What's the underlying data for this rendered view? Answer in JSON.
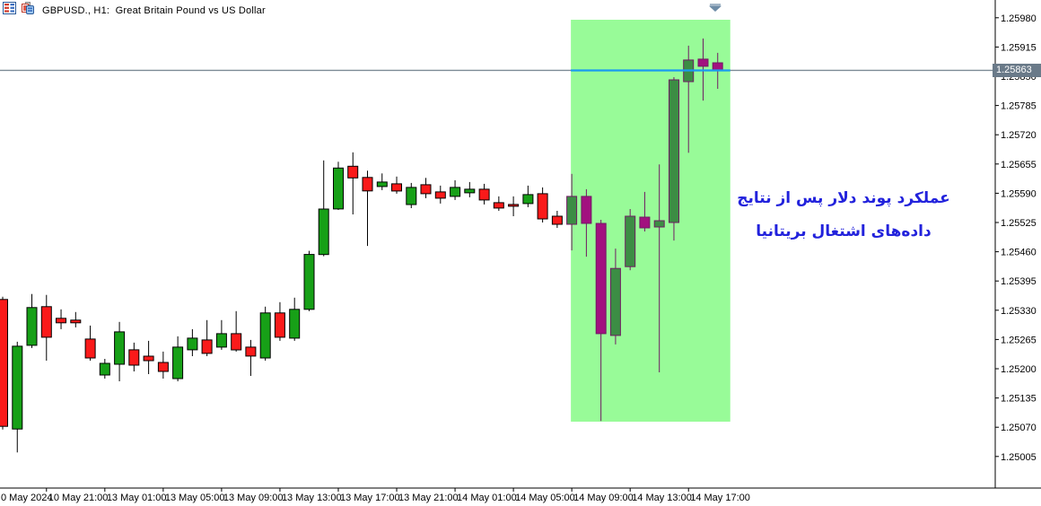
{
  "window": {
    "title": "GBPUSD., H1:  Great Britain Pound vs US Dollar",
    "icons": [
      "market-watch-icon",
      "chart-profile-icon"
    ],
    "scroll_arrow_hint": "scroll-to-latest"
  },
  "annotation": {
    "line1": "عملکرد پوند دلار پس از نتایج",
    "line2": "داده‌های اشتغال بریتانیا",
    "color": "#2222DC"
  },
  "price_scale": {
    "labels": [
      "1.25980",
      "1.25915",
      "1.25850",
      "1.25785",
      "1.25720",
      "1.25655",
      "1.25590",
      "1.25525",
      "1.25460",
      "1.25395",
      "1.25330",
      "1.25265",
      "1.25200",
      "1.25135",
      "1.25070",
      "1.25005"
    ],
    "current_price": "1.25863"
  },
  "time_scale": {
    "ticks": [
      {
        "label": "0 May 2024",
        "candle_index": -1
      },
      {
        "label": "10 May 21:00",
        "candle_index": 3
      },
      {
        "label": "13 May 01:00",
        "candle_index": 7
      },
      {
        "label": "13 May 05:00",
        "candle_index": 11
      },
      {
        "label": "13 May 09:00",
        "candle_index": 15
      },
      {
        "label": "13 May 13:00",
        "candle_index": 19
      },
      {
        "label": "13 May 17:00",
        "candle_index": 23
      },
      {
        "label": "13 May 21:00",
        "candle_index": 27
      },
      {
        "label": "14 May 01:00",
        "candle_index": 31
      },
      {
        "label": "14 May 05:00",
        "candle_index": 35
      },
      {
        "label": "14 May 09:00",
        "candle_index": 39
      },
      {
        "label": "14 May 13:00",
        "candle_index": 43
      },
      {
        "label": "14 May 17:00",
        "candle_index": 47
      }
    ]
  },
  "highlight_zone": {
    "start_index": 39,
    "end_index": 49,
    "top_price": 1.26,
    "bottom_price": 1.2508
  },
  "colors": {
    "bull": "#17A017",
    "bear": "#FA1A1A",
    "candle_border": "#000000",
    "zone_bull": "#3C8D44",
    "zone_bear": "#A2117F",
    "zone_border": "#701B63",
    "zone_fill": "#98FB98",
    "bid_line_gray": "#7D8B96",
    "highlight_line_blue": "#199BF0",
    "badge_bg": "#6A7A89",
    "axis": "#000000"
  },
  "chart_data": {
    "type": "candlestick",
    "symbol": "GBPUSD",
    "timeframe": "H1",
    "title": "GBPUSD., H1:  Great Britain Pound vs US Dollar",
    "current_price": 1.25863,
    "y_axis_label_step": 0.00065,
    "ylim": [
      1.2494,
      1.2602
    ],
    "legend_position": "none",
    "grid": false,
    "candles": [
      {
        "t": "10 May 18:00",
        "o": 1.25354,
        "h": 1.2536,
        "l": 1.25065,
        "c": 1.25072
      },
      {
        "t": "10 May 19:00",
        "o": 1.25066,
        "h": 1.2526,
        "l": 1.25014,
        "c": 1.2525
      },
      {
        "t": "10 May 20:00",
        "o": 1.25252,
        "h": 1.25366,
        "l": 1.25246,
        "c": 1.25336
      },
      {
        "t": "10 May 21:00",
        "o": 1.25338,
        "h": 1.25364,
        "l": 1.25218,
        "c": 1.2527
      },
      {
        "t": "10 May 22:00",
        "o": 1.25312,
        "h": 1.25332,
        "l": 1.25288,
        "c": 1.25302
      },
      {
        "t": "10 May 23:00",
        "o": 1.25308,
        "h": 1.25326,
        "l": 1.25292,
        "c": 1.25302
      },
      {
        "t": "13 May 00:00",
        "o": 1.25266,
        "h": 1.25296,
        "l": 1.25218,
        "c": 1.25224
      },
      {
        "t": "13 May 01:00",
        "o": 1.25186,
        "h": 1.25222,
        "l": 1.25178,
        "c": 1.25212
      },
      {
        "t": "13 May 02:00",
        "o": 1.2521,
        "h": 1.25304,
        "l": 1.25172,
        "c": 1.25282
      },
      {
        "t": "13 May 03:00",
        "o": 1.25242,
        "h": 1.25258,
        "l": 1.25194,
        "c": 1.25208
      },
      {
        "t": "13 May 04:00",
        "o": 1.25228,
        "h": 1.25262,
        "l": 1.25188,
        "c": 1.25218
      },
      {
        "t": "13 May 05:00",
        "o": 1.25214,
        "h": 1.25238,
        "l": 1.25178,
        "c": 1.25194
      },
      {
        "t": "13 May 06:00",
        "o": 1.25178,
        "h": 1.25272,
        "l": 1.25172,
        "c": 1.25248
      },
      {
        "t": "13 May 07:00",
        "o": 1.25242,
        "h": 1.25288,
        "l": 1.25228,
        "c": 1.25268
      },
      {
        "t": "13 May 08:00",
        "o": 1.25264,
        "h": 1.25308,
        "l": 1.25228,
        "c": 1.25234
      },
      {
        "t": "13 May 09:00",
        "o": 1.25248,
        "h": 1.25308,
        "l": 1.25242,
        "c": 1.25278
      },
      {
        "t": "13 May 10:00",
        "o": 1.25278,
        "h": 1.25328,
        "l": 1.25238,
        "c": 1.25242
      },
      {
        "t": "13 May 11:00",
        "o": 1.25248,
        "h": 1.25264,
        "l": 1.25184,
        "c": 1.25228
      },
      {
        "t": "13 May 12:00",
        "o": 1.25224,
        "h": 1.25338,
        "l": 1.25218,
        "c": 1.25324
      },
      {
        "t": "13 May 13:00",
        "o": 1.25324,
        "h": 1.25348,
        "l": 1.25262,
        "c": 1.2527
      },
      {
        "t": "13 May 14:00",
        "o": 1.25268,
        "h": 1.25358,
        "l": 1.25262,
        "c": 1.25332
      },
      {
        "t": "13 May 15:00",
        "o": 1.25332,
        "h": 1.25462,
        "l": 1.25328,
        "c": 1.25454
      },
      {
        "t": "13 May 16:00",
        "o": 1.25454,
        "h": 1.25663,
        "l": 1.2545,
        "c": 1.25555
      },
      {
        "t": "13 May 17:00",
        "o": 1.25555,
        "h": 1.2566,
        "l": 1.25553,
        "c": 1.25646
      },
      {
        "t": "13 May 18:00",
        "o": 1.2565,
        "h": 1.25681,
        "l": 1.25543,
        "c": 1.25624
      },
      {
        "t": "13 May 19:00",
        "o": 1.25625,
        "h": 1.2564,
        "l": 1.25473,
        "c": 1.25595
      },
      {
        "t": "13 May 20:00",
        "o": 1.25605,
        "h": 1.25634,
        "l": 1.25597,
        "c": 1.25615
      },
      {
        "t": "13 May 21:00",
        "o": 1.25611,
        "h": 1.25627,
        "l": 1.25589,
        "c": 1.25595
      },
      {
        "t": "13 May 22:00",
        "o": 1.25565,
        "h": 1.25613,
        "l": 1.25557,
        "c": 1.25603
      },
      {
        "t": "13 May 23:00",
        "o": 1.25609,
        "h": 1.25624,
        "l": 1.25579,
        "c": 1.25589
      },
      {
        "t": "14 May 00:00",
        "o": 1.25593,
        "h": 1.25607,
        "l": 1.25567,
        "c": 1.25579
      },
      {
        "t": "14 May 01:00",
        "o": 1.25583,
        "h": 1.25619,
        "l": 1.25575,
        "c": 1.25603
      },
      {
        "t": "14 May 02:00",
        "o": 1.25591,
        "h": 1.25615,
        "l": 1.25581,
        "c": 1.25599
      },
      {
        "t": "14 May 03:00",
        "o": 1.25599,
        "h": 1.25611,
        "l": 1.25565,
        "c": 1.25575
      },
      {
        "t": "14 May 04:00",
        "o": 1.25569,
        "h": 1.25583,
        "l": 1.25551,
        "c": 1.25557
      },
      {
        "t": "14 May 05:00",
        "o": 1.25565,
        "h": 1.25583,
        "l": 1.25539,
        "c": 1.25561
      },
      {
        "t": "14 May 06:00",
        "o": 1.25567,
        "h": 1.25607,
        "l": 1.25559,
        "c": 1.25587
      },
      {
        "t": "14 May 07:00",
        "o": 1.25589,
        "h": 1.25603,
        "l": 1.25525,
        "c": 1.25533
      },
      {
        "t": "14 May 08:00",
        "o": 1.25539,
        "h": 1.25551,
        "l": 1.25513,
        "c": 1.25521
      },
      {
        "t": "14 May 09:00",
        "o": 1.25521,
        "h": 1.25633,
        "l": 1.25463,
        "c": 1.25583
      },
      {
        "t": "14 May 10:00",
        "o": 1.25583,
        "h": 1.25599,
        "l": 1.25449,
        "c": 1.25523
      },
      {
        "t": "14 May 11:00",
        "o": 1.25523,
        "h": 1.25531,
        "l": 1.25084,
        "c": 1.25278
      },
      {
        "t": "14 May 12:00",
        "o": 1.25274,
        "h": 1.25467,
        "l": 1.25254,
        "c": 1.25423
      },
      {
        "t": "14 May 13:00",
        "o": 1.25427,
        "h": 1.25555,
        "l": 1.25419,
        "c": 1.25539
      },
      {
        "t": "14 May 14:00",
        "o": 1.25537,
        "h": 1.25593,
        "l": 1.25505,
        "c": 1.25513
      },
      {
        "t": "14 May 15:00",
        "o": 1.25515,
        "h": 1.25654,
        "l": 1.25192,
        "c": 1.25529
      },
      {
        "t": "14 May 16:00",
        "o": 1.25525,
        "h": 1.25848,
        "l": 1.25485,
        "c": 1.25842
      },
      {
        "t": "14 May 17:00",
        "o": 1.25838,
        "h": 1.25918,
        "l": 1.2568,
        "c": 1.25886
      },
      {
        "t": "14 May 18:00",
        "o": 1.25888,
        "h": 1.25934,
        "l": 1.25796,
        "c": 1.25872
      },
      {
        "t": "14 May 19:00",
        "o": 1.2588,
        "h": 1.25902,
        "l": 1.25822,
        "c": 1.25864
      }
    ]
  }
}
